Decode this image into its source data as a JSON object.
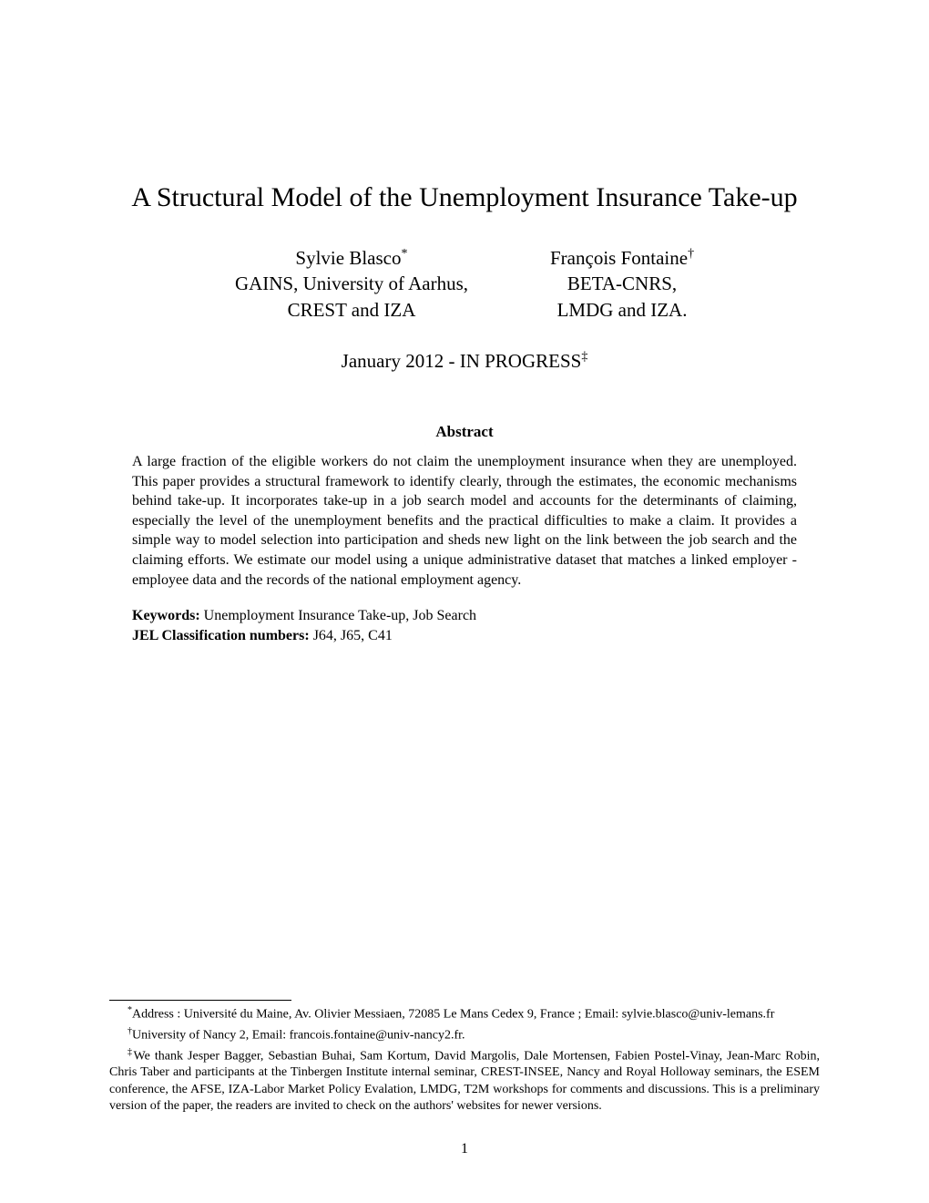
{
  "title": "A Structural Model of the Unemployment Insurance Take-up",
  "authors": [
    {
      "name": "Sylvie Blasco",
      "marker": "*",
      "affil1": "GAINS, University of Aarhus,",
      "affil2": "CREST and IZA"
    },
    {
      "name": "François Fontaine",
      "marker": "†",
      "affil1": "BETA-CNRS,",
      "affil2": "LMDG and IZA."
    }
  ],
  "date": "January 2012 - IN PROGRESS",
  "date_marker": "‡",
  "abstract_heading": "Abstract",
  "abstract_text": "A large fraction of the eligible workers do not claim the unemployment insurance when they are unemployed. This paper provides a structural framework to identify clearly, through the estimates, the economic mechanisms behind take-up. It incorporates take-up in a job search model and accounts for the determinants of claiming, especially the level of the unemployment benefits and the practical difficulties to make a claim. It provides a simple way to model selection into participation and sheds new light on the link between the job search and the claiming efforts. We estimate our model using a unique administrative dataset that matches a linked employer - employee data and the records of the national employment agency.",
  "keywords_label": "Keywords:",
  "keywords_text": "Unemployment Insurance Take-up, Job Search",
  "jel_label": "JEL Classification numbers:",
  "jel_text": "J64, J65, C41",
  "footnotes": [
    {
      "marker": "*",
      "text": "Address : Université du Maine, Av. Olivier Messiaen, 72085 Le Mans Cedex 9, France ; Email: sylvie.blasco@univ-lemans.fr"
    },
    {
      "marker": "†",
      "text": "University of Nancy 2, Email: francois.fontaine@univ-nancy2.fr."
    },
    {
      "marker": "‡",
      "text": "We thank Jesper Bagger, Sebastian Buhai, Sam Kortum, David Margolis, Dale Mortensen, Fabien Postel-Vinay, Jean-Marc Robin, Chris Taber and participants at the Tinbergen Institute internal seminar, CREST-INSEE, Nancy and Royal Holloway seminars, the ESEM conference, the AFSE, IZA-Labor Market Policy Evalation, LMDG, T2M workshops for comments and discussions. This is a preliminary version of the paper, the readers are invited to check on the authors' websites for newer versions."
    }
  ],
  "page_number": "1",
  "styling": {
    "background_color": "#ffffff",
    "text_color": "#000000",
    "title_fontsize": 30,
    "author_fontsize": 21,
    "abstract_fontsize": 16,
    "footnote_fontsize": 14,
    "font_family": "Times New Roman"
  }
}
